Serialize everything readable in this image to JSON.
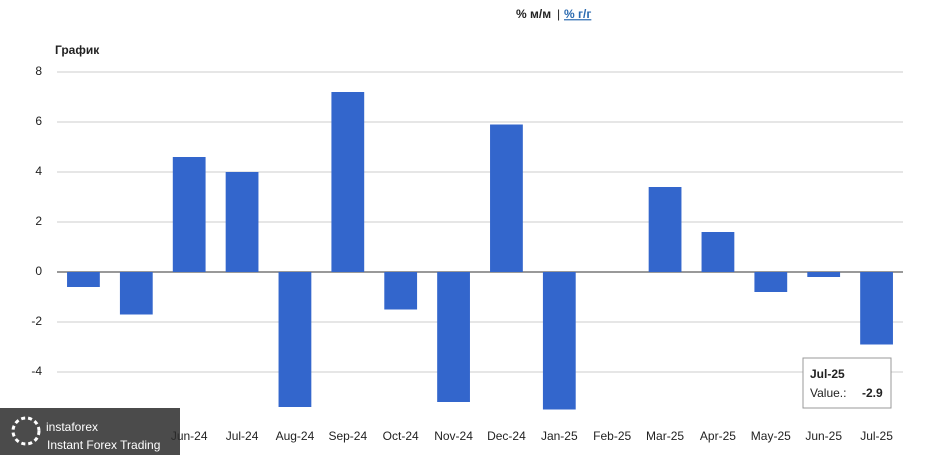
{
  "header": {
    "tab_active": "% м/м",
    "separator": "|",
    "tab_link": "% г/г"
  },
  "chart_data": {
    "type": "bar",
    "title": "График",
    "categories": [
      null,
      null,
      "Jun-24",
      "Jul-24",
      "Aug-24",
      "Sep-24",
      "Oct-24",
      "Nov-24",
      "Dec-24",
      "Jan-25",
      "Feb-25",
      "Mar-25",
      "Apr-25",
      "May-25",
      "Jun-25",
      "Jul-25"
    ],
    "values": [
      -0.6,
      -1.7,
      4.6,
      4.0,
      -5.4,
      7.2,
      -1.5,
      -5.2,
      5.9,
      -5.5,
      0,
      3.4,
      1.6,
      -0.8,
      -0.2,
      -2.9
    ],
    "color": "#3366cc",
    "ylim": [
      -6,
      8
    ],
    "yticks": [
      -4,
      -2,
      0,
      2,
      4,
      6,
      8
    ],
    "grid": true
  },
  "tooltip": {
    "title": "Jul-25",
    "label": "Value.:"
  },
  "logo": {
    "brand": "instaforex",
    "tagline": "Instant Forex Trading"
  }
}
